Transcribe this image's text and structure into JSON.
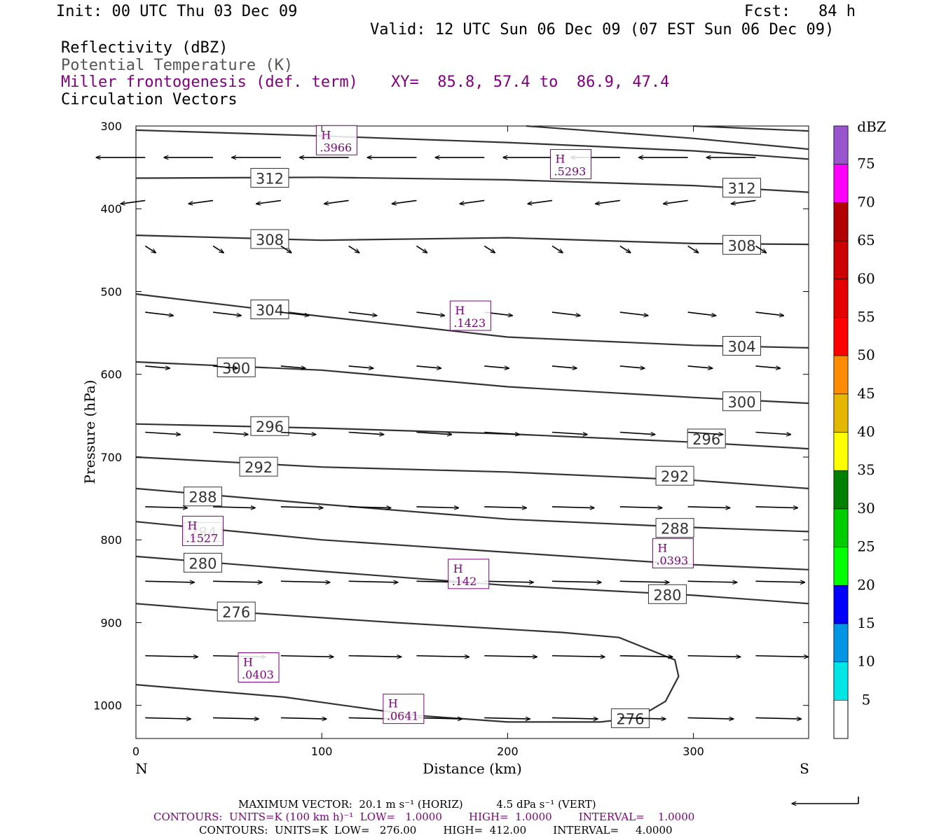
{
  "header": {
    "init": "Init: 00 UTC Thu 03 Dec 09",
    "fcst": "Fcst:   84 h",
    "valid": "Valid: 12 UTC Sun 06 Dec 09 (07 EST Sun 06 Dec 09)",
    "fields": [
      "Reflectivity (dBZ)",
      "Potential Temperature (K)",
      "Miller frontogenesis (def. term)",
      "Circulation Vectors"
    ],
    "xy": "XY=  85.8, 57.4 to  86.9, 47.4"
  },
  "footer": {
    "max_vector": "MAXIMUM VECTOR:  20.1 m s⁻¹ (HORIZ)          4.5 dPa s⁻¹ (VERT)",
    "contours_front": "CONTOURS:  UNITS=K (100 km h)⁻¹  LOW=   1.0000        HIGH=  1.0000        INTERVAL=    1.0000",
    "contours_theta": "CONTOURS:  UNITS=K  LOW=   276.00        HIGH=  412.00        INTERVAL=     4.0000"
  },
  "colorbar": {
    "title": "dBZ",
    "levels": [
      5,
      10,
      15,
      20,
      25,
      30,
      35,
      40,
      45,
      50,
      55,
      60,
      65,
      70,
      75
    ],
    "colors": [
      "#00e5e5",
      "#0096e5",
      "#0000ff",
      "#00ff00",
      "#00cc00",
      "#008000",
      "#ffff00",
      "#e5b800",
      "#ff8c00",
      "#ff0000",
      "#e50000",
      "#cc0000",
      "#b20000",
      "#ff00ff",
      "#9955cc"
    ]
  },
  "chart_data": {
    "type": "line",
    "xlabel": "Distance (km)",
    "ylabel": "Pressure (hPa)",
    "xlim": [
      0,
      362
    ],
    "ylim": [
      1040,
      300
    ],
    "x_ticks": [
      0,
      100,
      200,
      300
    ],
    "y_ticks": [
      300,
      400,
      500,
      600,
      700,
      800,
      900,
      1000
    ],
    "x_end_labels": {
      "left": "N",
      "right": "S"
    },
    "theta_contours": [
      {
        "label": "276",
        "points": [
          [
            0,
            877
          ],
          [
            60,
            888
          ],
          [
            140,
            900
          ],
          [
            230,
            912
          ],
          [
            260,
            918
          ],
          [
            290,
            945
          ],
          [
            292,
            965
          ],
          [
            285,
            995
          ],
          [
            270,
            1015
          ],
          [
            250,
            1020
          ],
          [
            200,
            1020
          ],
          [
            150,
            1012
          ],
          [
            80,
            990
          ],
          [
            0,
            975
          ]
        ],
        "labels": [
          [
            54,
            887
          ],
          [
            266,
            1016
          ]
        ]
      },
      {
        "label": "280",
        "points": [
          [
            0,
            820
          ],
          [
            100,
            838
          ],
          [
            200,
            855
          ],
          [
            300,
            867
          ],
          [
            362,
            877
          ]
        ],
        "labels": [
          [
            36,
            828
          ],
          [
            286,
            866
          ]
        ]
      },
      {
        "label": "284",
        "points": [
          [
            0,
            778
          ],
          [
            100,
            800
          ],
          [
            200,
            815
          ],
          [
            300,
            830
          ],
          [
            362,
            836
          ]
        ],
        "labels": [
          [
            36,
            791
          ]
        ]
      },
      {
        "label": "288",
        "points": [
          [
            0,
            738
          ],
          [
            100,
            757
          ],
          [
            200,
            775
          ],
          [
            300,
            785
          ],
          [
            362,
            790
          ]
        ],
        "labels": [
          [
            36,
            748
          ],
          [
            290,
            786
          ]
        ]
      },
      {
        "label": "292",
        "points": [
          [
            0,
            700
          ],
          [
            100,
            712
          ],
          [
            200,
            718
          ],
          [
            300,
            728
          ],
          [
            362,
            738
          ]
        ],
        "labels": [
          [
            66,
            712
          ],
          [
            290,
            723
          ]
        ]
      },
      {
        "label": "296",
        "points": [
          [
            0,
            660
          ],
          [
            100,
            665
          ],
          [
            200,
            672
          ],
          [
            300,
            682
          ],
          [
            362,
            690
          ]
        ],
        "labels": [
          [
            72,
            663
          ],
          [
            307,
            678
          ]
        ]
      },
      {
        "label": "300",
        "points": [
          [
            0,
            585
          ],
          [
            100,
            595
          ],
          [
            200,
            615
          ],
          [
            300,
            628
          ],
          [
            362,
            635
          ]
        ],
        "labels": [
          [
            54,
            592
          ],
          [
            326,
            633
          ]
        ]
      },
      {
        "label": "304",
        "points": [
          [
            0,
            503
          ],
          [
            100,
            530
          ],
          [
            200,
            555
          ],
          [
            300,
            565
          ],
          [
            362,
            568
          ]
        ],
        "labels": [
          [
            72,
            522
          ],
          [
            326,
            566
          ]
        ]
      },
      {
        "label": "308",
        "points": [
          [
            0,
            432
          ],
          [
            100,
            438
          ],
          [
            200,
            435
          ],
          [
            300,
            442
          ],
          [
            362,
            443
          ]
        ],
        "labels": [
          [
            72,
            437
          ],
          [
            326,
            444
          ]
        ]
      },
      {
        "label": "312",
        "points": [
          [
            0,
            363
          ],
          [
            100,
            362
          ],
          [
            200,
            365
          ],
          [
            300,
            372
          ],
          [
            362,
            380
          ]
        ],
        "labels": [
          [
            72,
            363
          ],
          [
            326,
            375
          ]
        ]
      },
      {
        "label": "",
        "points": [
          [
            0,
            305
          ],
          [
            100,
            312
          ],
          [
            200,
            320
          ],
          [
            300,
            330
          ],
          [
            362,
            340
          ]
        ],
        "labels": []
      },
      {
        "label": "",
        "points": [
          [
            210,
            300
          ],
          [
            300,
            315
          ],
          [
            362,
            328
          ]
        ],
        "labels": []
      },
      {
        "label": "",
        "points": [
          [
            300,
            300
          ],
          [
            362,
            306
          ]
        ],
        "labels": []
      }
    ],
    "frontogenesis_maxima": [
      {
        "x": 108,
        "p": 318,
        "value": ".3966"
      },
      {
        "x": 234,
        "p": 347,
        "value": ".5293"
      },
      {
        "x": 180,
        "p": 530,
        "value": ".1423"
      },
      {
        "x": 36,
        "p": 790,
        "value": ".1527"
      },
      {
        "x": 179,
        "p": 842,
        "value": ".142"
      },
      {
        "x": 289,
        "p": 817,
        "value": ".0393"
      },
      {
        "x": 66,
        "p": 955,
        "value": ".0403"
      },
      {
        "x": 144,
        "p": 1005,
        "value": ".0641"
      }
    ],
    "vector_rows": [
      {
        "p": 338,
        "u": -28,
        "v": 0
      },
      {
        "p": 390,
        "u": -14,
        "v": 3
      },
      {
        "p": 445,
        "u": 6,
        "v": 6
      },
      {
        "p": 525,
        "u": 16,
        "v": 3
      },
      {
        "p": 590,
        "u": 14,
        "v": 2
      },
      {
        "p": 670,
        "u": 20,
        "v": 2
      },
      {
        "p": 760,
        "u": 24,
        "v": 1
      },
      {
        "p": 850,
        "u": 28,
        "v": 1
      },
      {
        "p": 940,
        "u": 30,
        "v": 1
      },
      {
        "p": 1015,
        "u": 26,
        "v": 1
      }
    ]
  }
}
